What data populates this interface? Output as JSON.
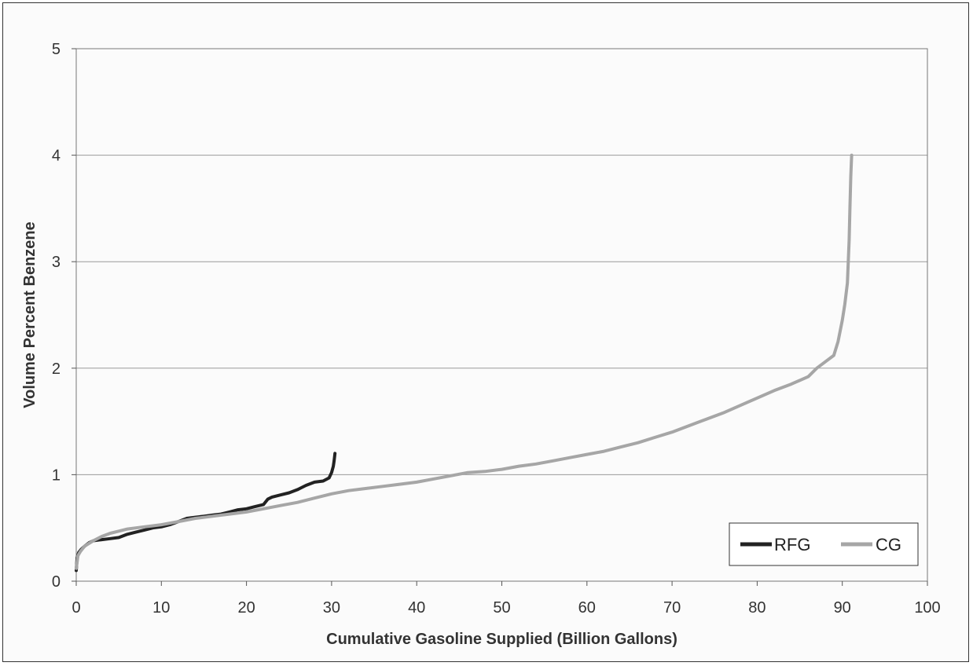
{
  "chart_data": {
    "type": "line",
    "title": "",
    "xlabel": "Cumulative Gasoline Supplied (Billion Gallons)",
    "ylabel": "Volume Percent Benzene",
    "xlim": [
      0,
      100
    ],
    "ylim": [
      0,
      5
    ],
    "x_ticks": [
      0,
      10,
      20,
      30,
      40,
      50,
      60,
      70,
      80,
      90,
      100
    ],
    "y_ticks": [
      0,
      1,
      2,
      3,
      4,
      5
    ],
    "grid": "horizontal",
    "legend_position": "bottom-right",
    "series": [
      {
        "name": "RFG",
        "color": "#222222",
        "points": [
          [
            0,
            0.1
          ],
          [
            0.1,
            0.22
          ],
          [
            0.3,
            0.27
          ],
          [
            0.6,
            0.3
          ],
          [
            1,
            0.33
          ],
          [
            1.5,
            0.36
          ],
          [
            2,
            0.38
          ],
          [
            3,
            0.39
          ],
          [
            4,
            0.4
          ],
          [
            5,
            0.41
          ],
          [
            6,
            0.44
          ],
          [
            7,
            0.46
          ],
          [
            8,
            0.48
          ],
          [
            9,
            0.5
          ],
          [
            10,
            0.51
          ],
          [
            11,
            0.53
          ],
          [
            12,
            0.56
          ],
          [
            13,
            0.59
          ],
          [
            14,
            0.6
          ],
          [
            15,
            0.61
          ],
          [
            16,
            0.62
          ],
          [
            17,
            0.63
          ],
          [
            18,
            0.65
          ],
          [
            19,
            0.67
          ],
          [
            20,
            0.68
          ],
          [
            21,
            0.7
          ],
          [
            22,
            0.72
          ],
          [
            22.5,
            0.77
          ],
          [
            23,
            0.79
          ],
          [
            24,
            0.81
          ],
          [
            25,
            0.83
          ],
          [
            26,
            0.86
          ],
          [
            27,
            0.9
          ],
          [
            28,
            0.93
          ],
          [
            29,
            0.94
          ],
          [
            29.7,
            0.97
          ],
          [
            30,
            1.02
          ],
          [
            30.2,
            1.08
          ],
          [
            30.3,
            1.13
          ],
          [
            30.4,
            1.2
          ]
        ]
      },
      {
        "name": "CG",
        "color": "#a6a6a6",
        "points": [
          [
            0,
            0.12
          ],
          [
            0.2,
            0.24
          ],
          [
            0.5,
            0.28
          ],
          [
            1,
            0.33
          ],
          [
            2,
            0.38
          ],
          [
            3,
            0.42
          ],
          [
            4,
            0.45
          ],
          [
            5,
            0.47
          ],
          [
            6,
            0.49
          ],
          [
            7,
            0.5
          ],
          [
            8,
            0.51
          ],
          [
            9,
            0.52
          ],
          [
            10,
            0.53
          ],
          [
            12,
            0.56
          ],
          [
            14,
            0.59
          ],
          [
            16,
            0.61
          ],
          [
            18,
            0.63
          ],
          [
            20,
            0.65
          ],
          [
            22,
            0.68
          ],
          [
            24,
            0.71
          ],
          [
            26,
            0.74
          ],
          [
            28,
            0.78
          ],
          [
            30,
            0.82
          ],
          [
            32,
            0.85
          ],
          [
            34,
            0.87
          ],
          [
            36,
            0.89
          ],
          [
            38,
            0.91
          ],
          [
            40,
            0.93
          ],
          [
            42,
            0.96
          ],
          [
            44,
            0.99
          ],
          [
            46,
            1.02
          ],
          [
            48,
            1.03
          ],
          [
            50,
            1.05
          ],
          [
            52,
            1.08
          ],
          [
            54,
            1.1
          ],
          [
            56,
            1.13
          ],
          [
            58,
            1.16
          ],
          [
            60,
            1.19
          ],
          [
            62,
            1.22
          ],
          [
            64,
            1.26
          ],
          [
            66,
            1.3
          ],
          [
            68,
            1.35
          ],
          [
            70,
            1.4
          ],
          [
            72,
            1.46
          ],
          [
            74,
            1.52
          ],
          [
            76,
            1.58
          ],
          [
            78,
            1.65
          ],
          [
            80,
            1.72
          ],
          [
            82,
            1.79
          ],
          [
            84,
            1.85
          ],
          [
            86,
            1.92
          ],
          [
            87,
            2.0
          ],
          [
            88,
            2.06
          ],
          [
            89,
            2.12
          ],
          [
            89.5,
            2.25
          ],
          [
            90,
            2.45
          ],
          [
            90.3,
            2.6
          ],
          [
            90.6,
            2.8
          ],
          [
            90.8,
            3.2
          ],
          [
            90.9,
            3.5
          ],
          [
            91,
            3.8
          ],
          [
            91.1,
            4.0
          ]
        ]
      }
    ]
  }
}
